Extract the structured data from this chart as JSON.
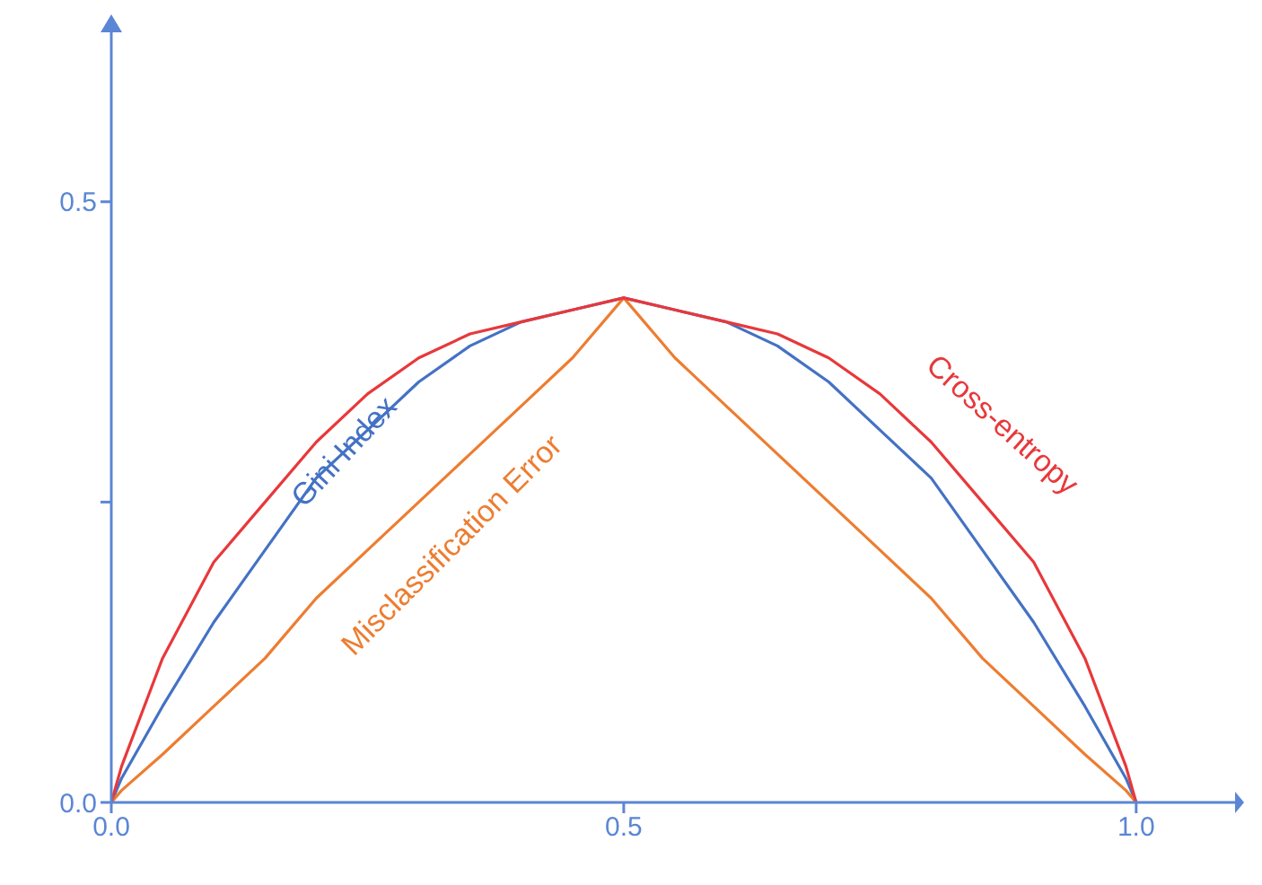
{
  "chart_data": {
    "type": "line",
    "x": [
      0,
      0.01,
      0.05,
      0.1,
      0.15,
      0.2,
      0.25,
      0.3,
      0.35,
      0.4,
      0.45,
      0.5,
      0.55,
      0.6,
      0.65,
      0.7,
      0.75,
      0.8,
      0.85,
      0.9,
      0.95,
      0.99,
      1
    ],
    "series": [
      {
        "name": "Gini Index",
        "color": "#4472c4",
        "values": [
          0,
          0.02,
          0.08,
          0.15,
          0.21,
          0.27,
          0.31,
          0.35,
          0.38,
          0.4,
          0.41,
          0.42,
          0.41,
          0.4,
          0.38,
          0.35,
          0.31,
          0.27,
          0.21,
          0.15,
          0.08,
          0.02,
          0
        ]
      },
      {
        "name": "Misclassification Error",
        "color": "#ed7d31",
        "values": [
          0,
          0.01,
          0.04,
          0.08,
          0.12,
          0.17,
          0.21,
          0.25,
          0.29,
          0.33,
          0.37,
          0.42,
          0.37,
          0.33,
          0.29,
          0.25,
          0.21,
          0.17,
          0.12,
          0.08,
          0.04,
          0.01,
          0
        ]
      },
      {
        "name": "Cross-entropy",
        "color": "#e8383b",
        "values": [
          0,
          0.03,
          0.12,
          0.2,
          0.25,
          0.3,
          0.34,
          0.37,
          0.39,
          0.4,
          0.41,
          0.42,
          0.41,
          0.4,
          0.39,
          0.37,
          0.34,
          0.3,
          0.25,
          0.2,
          0.12,
          0.03,
          0
        ]
      }
    ],
    "xlim": [
      0,
      1.1
    ],
    "xticks": [
      {
        "value": 0,
        "label": "0.0"
      },
      {
        "value": 0.5,
        "label": "0.5"
      },
      {
        "value": 1,
        "label": "1.0"
      }
    ],
    "ylim": [
      0,
      0.65
    ],
    "yticks": [
      {
        "value": 0,
        "label": "0.0"
      },
      {
        "value": 0.25,
        "label": null
      },
      {
        "value": 0.5,
        "label": "0.5"
      }
    ],
    "grid": false,
    "marker": "none",
    "line_style": "solid"
  }
}
